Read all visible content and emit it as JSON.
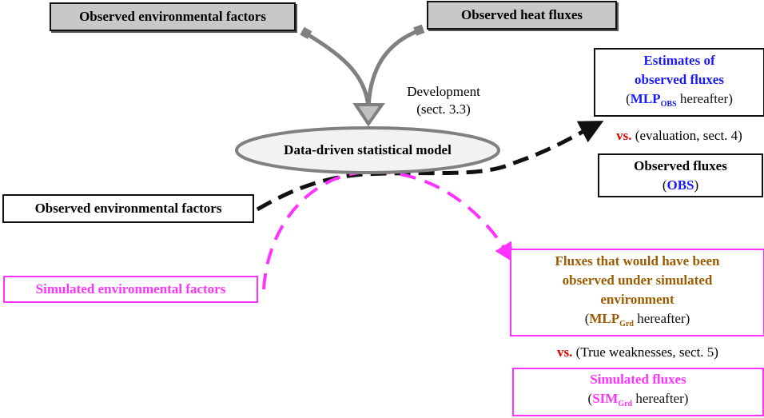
{
  "nodes": {
    "obs_env_top": "Observed environmental factors",
    "obs_heat": "Observed heat fluxes",
    "model": "Data-driven statistical model",
    "development": [
      "Development",
      "(sect. 3.3)"
    ],
    "estimates": {
      "line1": "Estimates of",
      "line2": "observed fluxes",
      "open": "(",
      "abbr": "MLP",
      "sub": "OBS",
      "rest": " hereafter)"
    },
    "vs1": {
      "vs": "vs.",
      "text": " (evaluation, sect. 4)"
    },
    "observed_fluxes": {
      "line1": "Observed fluxes",
      "open": "(",
      "abbr": "OBS",
      "close": ")"
    },
    "obs_env_mid": "Observed environmental factors",
    "sim_env": "Simulated environmental factors",
    "would_have": {
      "line1": "Fluxes that would have been",
      "line2": "observed under simulated",
      "line3": "environment",
      "open": "(",
      "abbr": "MLP",
      "sub": "Grd",
      "rest": " hereafter)"
    },
    "vs2": {
      "vs": "vs.",
      "text": " (True weaknesses, sect. 5)"
    },
    "sim_fluxes": {
      "line1": "Simulated fluxes",
      "open": "(",
      "abbr": "SIM",
      "sub": "Grd",
      "rest": " hereafter)"
    }
  },
  "colors": {
    "blue": "#1a1aff",
    "brown": "#9c5b00",
    "magenta": "#ff33ff",
    "red": "#e00000",
    "gray": "#808080"
  }
}
